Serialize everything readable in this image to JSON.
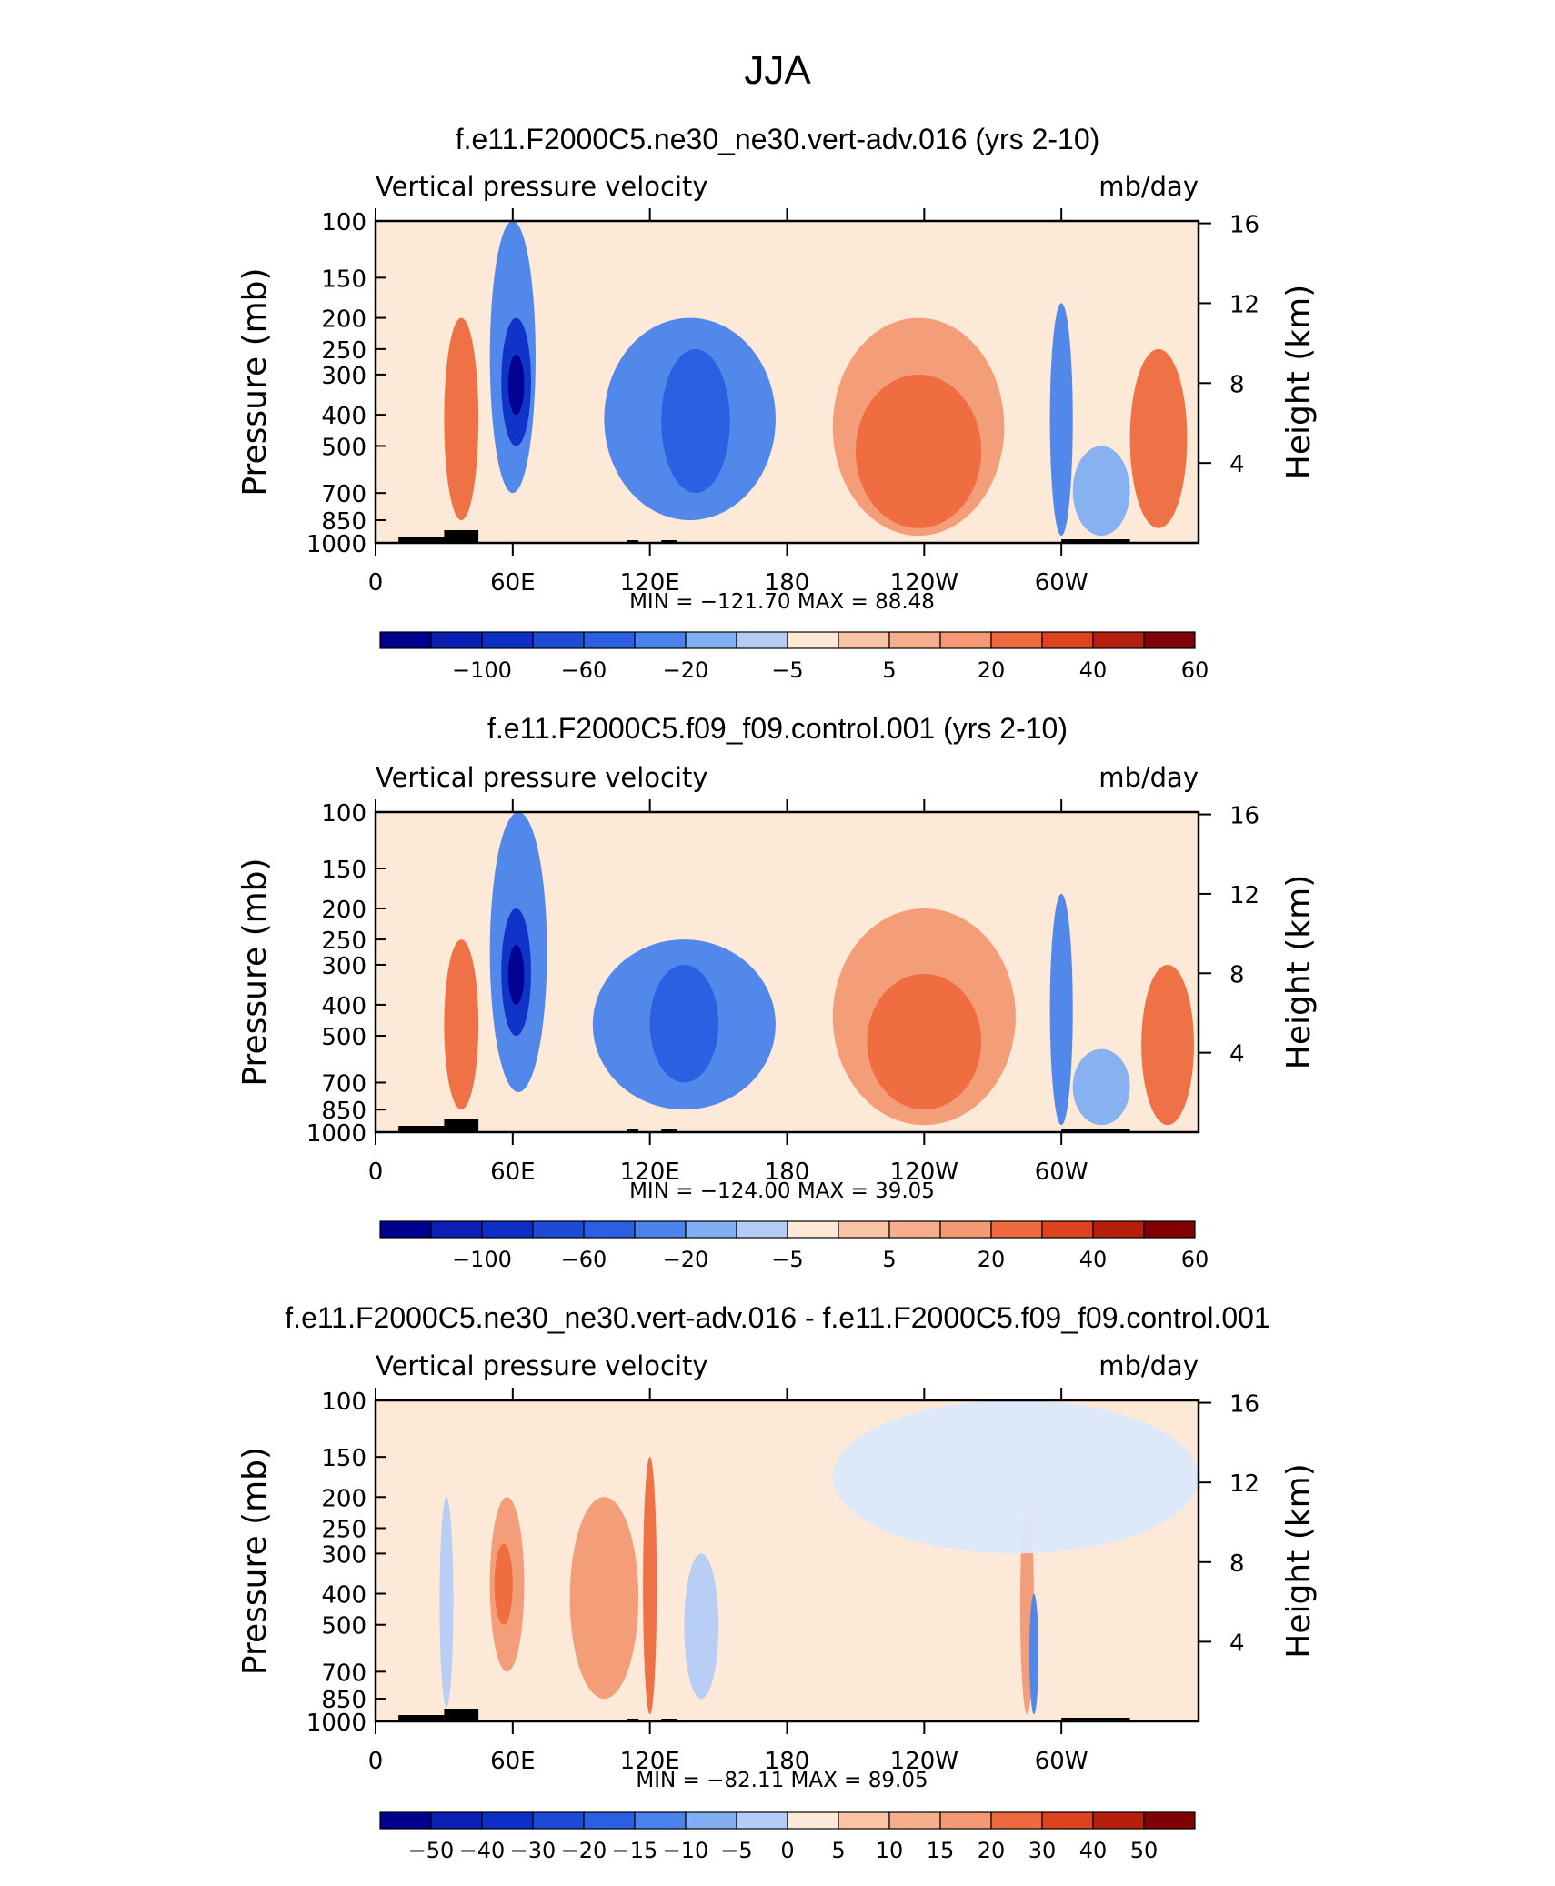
{
  "figure": {
    "season_title": "JJA"
  },
  "chart_data": [
    {
      "type": "heatmap",
      "title": "f.e11.F2000C5.ne30_ne30.vert-adv.016 (yrs 2-10)",
      "left_string": "Vertical pressure velocity",
      "units": "mb/day",
      "ylabel": "Pressure (mb)",
      "ylabel_right": "Height (km)",
      "yticks_pressure": [
        "100",
        "150",
        "200",
        "250",
        "300",
        "400",
        "500",
        "700",
        "850",
        "1000"
      ],
      "yticks_height": [
        "16",
        "12",
        "8",
        "4"
      ],
      "xticks": [
        "0",
        "60E",
        "120E",
        "180",
        "120W",
        "60W"
      ],
      "stats": "MIN = −121.70   MAX =   88.48",
      "colorbar_labels": [
        "−100",
        "−60",
        "−20",
        "−5",
        "5",
        "20",
        "40",
        "60"
      ],
      "field": [
        {
          "lon": [
            50,
            70
          ],
          "p": [
            100,
            700
          ],
          "level": -4
        },
        {
          "lon": [
            55,
            68
          ],
          "p": [
            200,
            500
          ],
          "level": -6
        },
        {
          "lon": [
            58,
            65
          ],
          "p": [
            260,
            400
          ],
          "level": -7
        },
        {
          "lon": [
            100,
            175
          ],
          "p": [
            200,
            850
          ],
          "level": -4
        },
        {
          "lon": [
            125,
            155
          ],
          "p": [
            250,
            700
          ],
          "level": -5
        },
        {
          "lon": [
            200,
            275
          ],
          "p": [
            200,
            950
          ],
          "level": 2
        },
        {
          "lon": [
            210,
            265
          ],
          "p": [
            300,
            900
          ],
          "level": 3
        },
        {
          "lon": [
            295,
            305
          ],
          "p": [
            180,
            950
          ],
          "level": -4
        },
        {
          "lon": [
            305,
            330
          ],
          "p": [
            500,
            950
          ],
          "level": -3
        },
        {
          "lon": [
            330,
            355
          ],
          "p": [
            250,
            900
          ],
          "level": 3
        },
        {
          "lon": [
            30,
            45
          ],
          "p": [
            200,
            850
          ],
          "level": 3
        }
      ]
    },
    {
      "type": "heatmap",
      "title": "f.e11.F2000C5.f09_f09.control.001 (yrs 2-10)",
      "left_string": "Vertical pressure velocity",
      "units": "mb/day",
      "ylabel": "Pressure (mb)",
      "ylabel_right": "Height (km)",
      "yticks_pressure": [
        "100",
        "150",
        "200",
        "250",
        "300",
        "400",
        "500",
        "700",
        "850",
        "1000"
      ],
      "yticks_height": [
        "16",
        "12",
        "8",
        "4"
      ],
      "xticks": [
        "0",
        "60E",
        "120E",
        "180",
        "120W",
        "60W"
      ],
      "stats": "MIN = −124.00   MAX =   39.05",
      "colorbar_labels": [
        "−100",
        "−60",
        "−20",
        "−5",
        "5",
        "20",
        "40",
        "60"
      ],
      "field": [
        {
          "lon": [
            50,
            75
          ],
          "p": [
            100,
            750
          ],
          "level": -4
        },
        {
          "lon": [
            55,
            68
          ],
          "p": [
            200,
            500
          ],
          "level": -6
        },
        {
          "lon": [
            58,
            65
          ],
          "p": [
            260,
            400
          ],
          "level": -7
        },
        {
          "lon": [
            95,
            175
          ],
          "p": [
            250,
            850
          ],
          "level": -4
        },
        {
          "lon": [
            120,
            150
          ],
          "p": [
            300,
            700
          ],
          "level": -5
        },
        {
          "lon": [
            200,
            280
          ],
          "p": [
            200,
            950
          ],
          "level": 2
        },
        {
          "lon": [
            215,
            265
          ],
          "p": [
            320,
            850
          ],
          "level": 3
        },
        {
          "lon": [
            295,
            305
          ],
          "p": [
            180,
            950
          ],
          "level": -4
        },
        {
          "lon": [
            305,
            330
          ],
          "p": [
            550,
            950
          ],
          "level": -3
        },
        {
          "lon": [
            335,
            358
          ],
          "p": [
            300,
            950
          ],
          "level": 3
        },
        {
          "lon": [
            30,
            45
          ],
          "p": [
            250,
            850
          ],
          "level": 3
        }
      ]
    },
    {
      "type": "heatmap",
      "title": "f.e11.F2000C5.ne30_ne30.vert-adv.016 - f.e11.F2000C5.f09_f09.control.001",
      "left_string": "Vertical pressure velocity",
      "units": "mb/day",
      "ylabel": "Pressure (mb)",
      "ylabel_right": "Height (km)",
      "yticks_pressure": [
        "100",
        "150",
        "200",
        "250",
        "300",
        "400",
        "500",
        "700",
        "850",
        "1000"
      ],
      "yticks_height": [
        "16",
        "12",
        "8",
        "4"
      ],
      "xticks": [
        "0",
        "60E",
        "120E",
        "180",
        "120W",
        "60W"
      ],
      "stats": "MIN = −82.11   MAX =   89.05",
      "colorbar_labels": [
        "−50",
        "−40",
        "−30",
        "−20",
        "−15",
        "−10",
        "−5",
        "0",
        "5",
        "10",
        "15",
        "20",
        "30",
        "40",
        "50"
      ],
      "field": [
        {
          "lon": [
            50,
            65
          ],
          "p": [
            200,
            700
          ],
          "level": 2
        },
        {
          "lon": [
            52,
            60
          ],
          "p": [
            280,
            500
          ],
          "level": 3
        },
        {
          "lon": [
            85,
            115
          ],
          "p": [
            200,
            850
          ],
          "level": 2
        },
        {
          "lon": [
            117,
            123
          ],
          "p": [
            150,
            950
          ],
          "level": 3
        },
        {
          "lon": [
            135,
            150
          ],
          "p": [
            300,
            850
          ],
          "level": -2
        },
        {
          "lon": [
            282,
            288
          ],
          "p": [
            200,
            950
          ],
          "level": 2
        },
        {
          "lon": [
            286,
            290
          ],
          "p": [
            400,
            950
          ],
          "level": -4
        },
        {
          "lon": [
            28,
            34
          ],
          "p": [
            200,
            900
          ],
          "level": -2
        },
        {
          "lon": [
            200,
            360
          ],
          "p": [
            100,
            300
          ],
          "level": -1
        }
      ]
    }
  ],
  "colors": {
    "palette_12": [
      "#00008e",
      "#0d2fc8",
      "#2a5ee3",
      "#4a83ec",
      "#82aef3",
      "#b4ccf6",
      "#dbe9fb",
      "#fde9d7",
      "#f9c4a6",
      "#f39a74",
      "#ee6a3e",
      "#de4320",
      "#b71f0d",
      "#800005"
    ],
    "background_neutral": "#fde9d7",
    "topography": "#000000"
  }
}
